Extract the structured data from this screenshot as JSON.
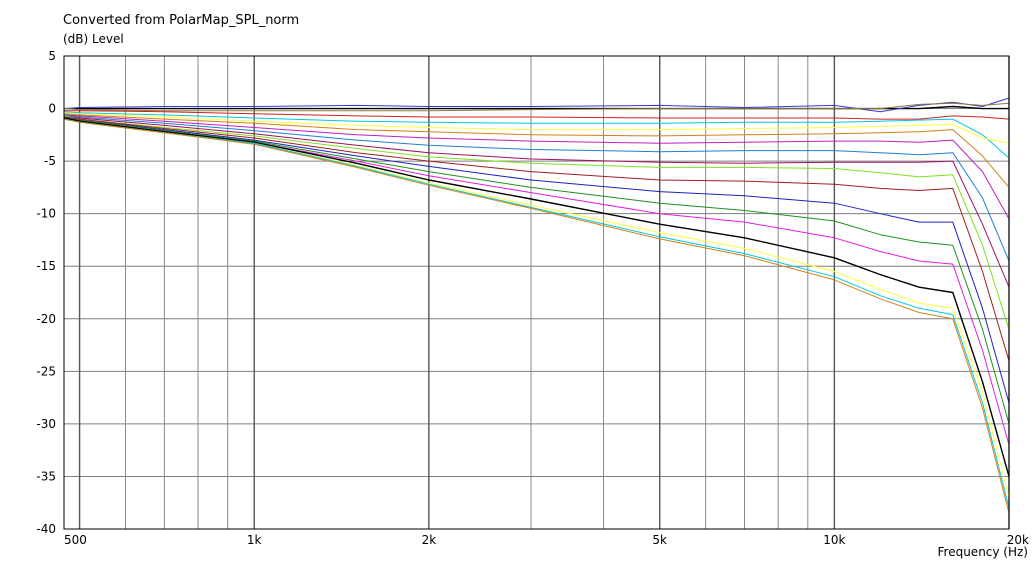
{
  "chart_data": {
    "type": "line",
    "title": "Converted from PolarMap_SPL_norm",
    "ylabel": "(dB)  Level",
    "xlabel": "Frequency  (Hz)",
    "x_scale": "log",
    "xlim": [
      470,
      20000
    ],
    "ylim": [
      -40,
      5
    ],
    "grid": true,
    "legend": "none",
    "yticks": [
      5,
      0,
      -5,
      -10,
      -15,
      -20,
      -25,
      -30,
      -35,
      -40
    ],
    "yticklabels": [
      "5",
      "0",
      "-5",
      "-10",
      "-15",
      "-20",
      "-25",
      "-30",
      "-35",
      "-40"
    ],
    "xticks": [
      500,
      1000,
      2000,
      5000,
      10000,
      20000
    ],
    "xticklabels": [
      "500",
      "1k",
      "2k",
      "5k",
      "10k",
      "20k"
    ],
    "x": [
      470,
      500,
      700,
      1000,
      1500,
      2000,
      3000,
      5000,
      7000,
      10000,
      12000,
      14000,
      16000,
      18000,
      20000
    ],
    "series": [
      {
        "color": "#000000",
        "values": [
          0,
          0,
          0,
          0,
          0,
          0,
          0,
          0,
          0,
          0,
          0,
          0,
          0.2,
          0,
          0
        ]
      },
      {
        "color": "#3a3ad0",
        "values": [
          0,
          0.1,
          0.2,
          0.2,
          0.3,
          0.2,
          0.2,
          0.3,
          0.1,
          0.3,
          -0.3,
          0.3,
          0.6,
          0.2,
          1.0
        ]
      },
      {
        "color": "#8e7b3d",
        "values": [
          0,
          -0.1,
          -0.2,
          -0.2,
          -0.2,
          -0.2,
          -0.1,
          0,
          0,
          0,
          0,
          0.4,
          0.5,
          0.3,
          0.5
        ]
      },
      {
        "color": "#d02020",
        "values": [
          -0.2,
          -0.2,
          -0.3,
          -0.5,
          -0.7,
          -0.8,
          -0.8,
          -0.9,
          -0.9,
          -0.9,
          -1.0,
          -1.0,
          -0.7,
          -0.8,
          -1.0
        ]
      },
      {
        "color": "#00c8e0",
        "values": [
          -0.3,
          -0.4,
          -0.6,
          -0.9,
          -1.2,
          -1.3,
          -1.4,
          -1.4,
          -1.3,
          -1.3,
          -1.2,
          -1.1,
          -1.0,
          -2.5,
          -4.7
        ]
      },
      {
        "color": "#ffff40",
        "values": [
          -0.4,
          -0.5,
          -0.8,
          -1.2,
          -1.6,
          -1.8,
          -2.0,
          -2.0,
          -1.9,
          -1.8,
          -1.7,
          -1.6,
          -1.5,
          -2.8,
          -3.3
        ]
      },
      {
        "color": "#d4801a",
        "values": [
          -0.5,
          -0.6,
          -1.0,
          -1.4,
          -2.0,
          -2.2,
          -2.5,
          -2.6,
          -2.5,
          -2.4,
          -2.3,
          -2.2,
          -2.0,
          -4.5,
          -7.5
        ]
      },
      {
        "color": "#c020c0",
        "values": [
          -0.6,
          -0.7,
          -1.2,
          -1.8,
          -2.5,
          -2.8,
          -3.1,
          -3.3,
          -3.2,
          -3.1,
          -3.1,
          -3.2,
          -3.0,
          -6.0,
          -10.5
        ]
      },
      {
        "color": "#2080d0",
        "values": [
          -0.6,
          -0.8,
          -1.4,
          -2.1,
          -3.0,
          -3.5,
          -3.9,
          -4.1,
          -4.0,
          -4.0,
          -4.2,
          -4.4,
          -4.2,
          -8.5,
          -14.5
        ]
      },
      {
        "color": "#a01060",
        "values": [
          -0.7,
          -0.9,
          -1.6,
          -2.4,
          -3.5,
          -4.2,
          -4.8,
          -5.1,
          -5.2,
          -5.1,
          -5.1,
          -5.1,
          -5.0,
          -11.0,
          -17.0
        ]
      },
      {
        "color": "#80e020",
        "values": [
          -0.7,
          -1.0,
          -1.8,
          -2.6,
          -3.8,
          -4.6,
          -5.2,
          -5.6,
          -5.6,
          -5.7,
          -6.1,
          -6.5,
          -6.3,
          -13.0,
          -21.0
        ]
      },
      {
        "color": "#a02020",
        "values": [
          -0.8,
          -1.0,
          -1.9,
          -2.8,
          -4.2,
          -5.0,
          -6.0,
          -6.8,
          -6.9,
          -7.2,
          -7.6,
          -7.8,
          -7.6,
          -15.5,
          -24.0
        ]
      },
      {
        "color": "#2020c0",
        "values": [
          -0.8,
          -1.1,
          -2.0,
          -3.0,
          -4.5,
          -5.5,
          -6.8,
          -7.9,
          -8.3,
          -9.0,
          -10.0,
          -10.8,
          -10.8,
          -19.0,
          -28.0
        ]
      },
      {
        "color": "#209020",
        "values": [
          -0.9,
          -1.1,
          -2.1,
          -3.1,
          -4.8,
          -6.0,
          -7.5,
          -9.0,
          -9.7,
          -10.7,
          -12.0,
          -12.7,
          -13.0,
          -21.0,
          -30.0
        ]
      },
      {
        "color": "#e020e0",
        "values": [
          -0.9,
          -1.2,
          -2.2,
          -3.2,
          -5.0,
          -6.4,
          -8.0,
          -10.0,
          -10.8,
          -12.3,
          -13.6,
          -14.5,
          -14.8,
          -23.0,
          -32.0
        ]
      },
      {
        "color": "#000000",
        "values": [
          -0.9,
          -1.2,
          -2.2,
          -3.2,
          -5.2,
          -6.8,
          -8.6,
          -11.0,
          -12.3,
          -14.2,
          -15.8,
          -17.0,
          -17.5,
          -26.0,
          -35.0
        ]
      },
      {
        "color": "#ffff40",
        "values": [
          -1.0,
          -1.3,
          -2.3,
          -3.3,
          -5.4,
          -7.1,
          -9.2,
          -11.8,
          -13.3,
          -15.5,
          -17.2,
          -18.5,
          -19.0,
          -27.0,
          -37.0
        ]
      },
      {
        "color": "#00c8e0",
        "values": [
          -1.0,
          -1.3,
          -2.3,
          -3.3,
          -5.5,
          -7.2,
          -9.4,
          -12.2,
          -13.8,
          -16.0,
          -17.8,
          -19.0,
          -19.6,
          -28.0,
          -38.0
        ]
      },
      {
        "color": "#d4801a",
        "values": [
          -1.0,
          -1.3,
          -2.3,
          -3.4,
          -5.6,
          -7.3,
          -9.5,
          -12.4,
          -14.0,
          -16.3,
          -18.1,
          -19.4,
          -20.0,
          -28.5,
          -38.5
        ]
      }
    ]
  }
}
